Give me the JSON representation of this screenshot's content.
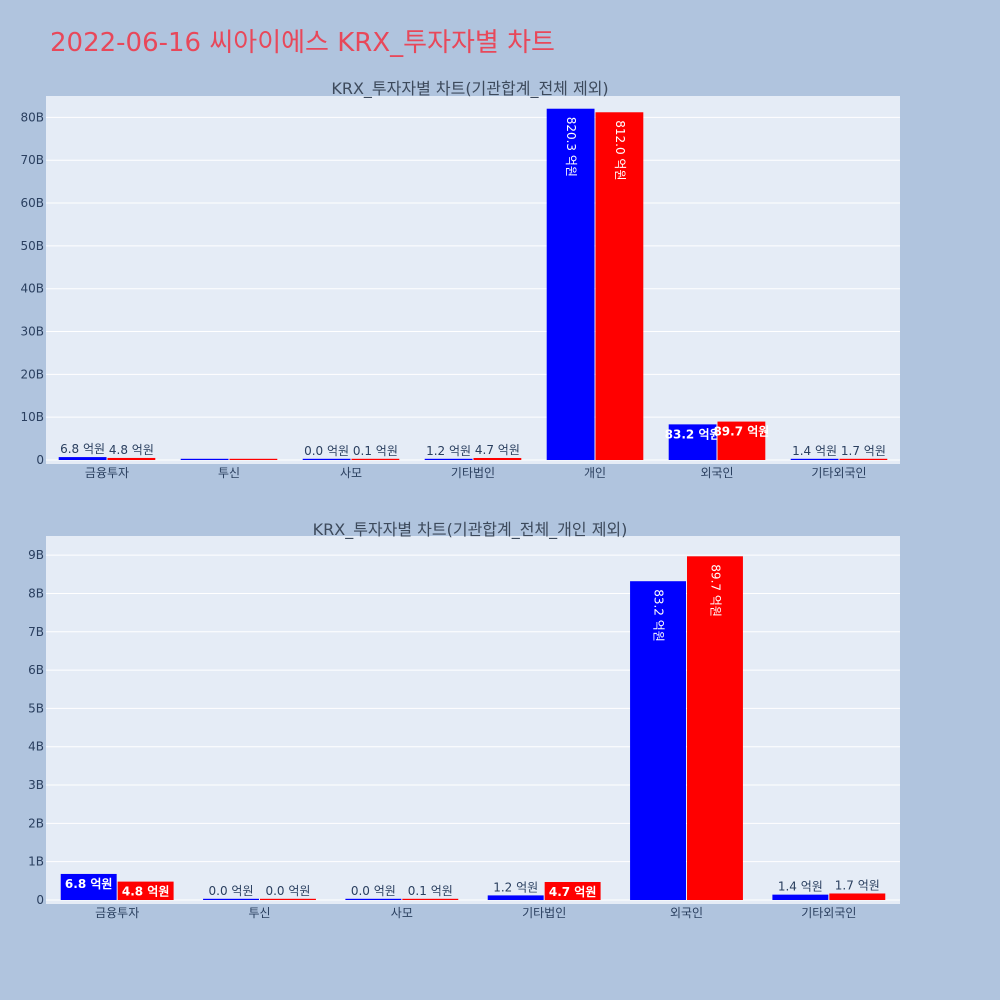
{
  "title": "2022-06-16 씨아이에스 KRX_투자자별 차트",
  "colors": {
    "buy": "#0000ff",
    "sell": "#ff0000",
    "plot_bg": "#e5ecf6",
    "page_bg": "#b0c4de",
    "title": "#e8485a"
  },
  "chart_data": [
    {
      "type": "bar",
      "title": "KRX_투자자별 차트(기관합계_전체 제외)",
      "categories": [
        "금융투자",
        "투신",
        "사모",
        "기타법인",
        "개인",
        "외국인",
        "기타외국인"
      ],
      "series": [
        {
          "values": [
            0.68,
            0.0,
            0.0,
            0.12,
            82.03,
            8.32,
            0.14
          ]
        },
        {
          "values": [
            0.48,
            0.0,
            0.01,
            0.47,
            81.2,
            8.97,
            0.17
          ]
        }
      ],
      "labels": [
        [
          "6.8 억원",
          "",
          "0.0 억원",
          "1.2 억원",
          "820.3 억원",
          "83.2 억원",
          "1.4 억원"
        ],
        [
          "4.8 억원",
          "",
          "0.1 억원",
          "4.7 억원",
          "812.0 억원",
          "89.7 억원",
          "1.7 억원"
        ]
      ],
      "unit": "B",
      "ylim": [
        0,
        85
      ],
      "yticks": [
        0,
        10,
        20,
        30,
        40,
        50,
        60,
        70,
        80
      ],
      "ytick_labels": [
        "0",
        "10B",
        "20B",
        "30B",
        "40B",
        "50B",
        "60B",
        "70B",
        "80B"
      ],
      "grid": true,
      "legend": "none"
    },
    {
      "type": "bar",
      "title": "KRX_투자자별 차트(기관합계_전체_개인 제외)",
      "categories": [
        "금융투자",
        "투신",
        "사모",
        "기타법인",
        "외국인",
        "기타외국인"
      ],
      "series": [
        {
          "values": [
            0.68,
            0.0,
            0.0,
            0.12,
            8.32,
            0.14
          ]
        },
        {
          "values": [
            0.48,
            0.0,
            0.01,
            0.47,
            8.97,
            0.17
          ]
        }
      ],
      "labels": [
        [
          "6.8 억원",
          "0.0 억원",
          "0.0 억원",
          "1.2 억원",
          "83.2 억원",
          "1.4 억원"
        ],
        [
          "4.8 억원",
          "0.0 억원",
          "0.1 억원",
          "4.7 억원",
          "89.7 억원",
          "1.7 억원"
        ]
      ],
      "unit": "B",
      "ylim": [
        0,
        9.5
      ],
      "yticks": [
        0,
        1,
        2,
        3,
        4,
        5,
        6,
        7,
        8,
        9
      ],
      "ytick_labels": [
        "0",
        "1B",
        "2B",
        "3B",
        "4B",
        "5B",
        "6B",
        "7B",
        "8B",
        "9B"
      ],
      "grid": true,
      "legend": "none"
    }
  ]
}
